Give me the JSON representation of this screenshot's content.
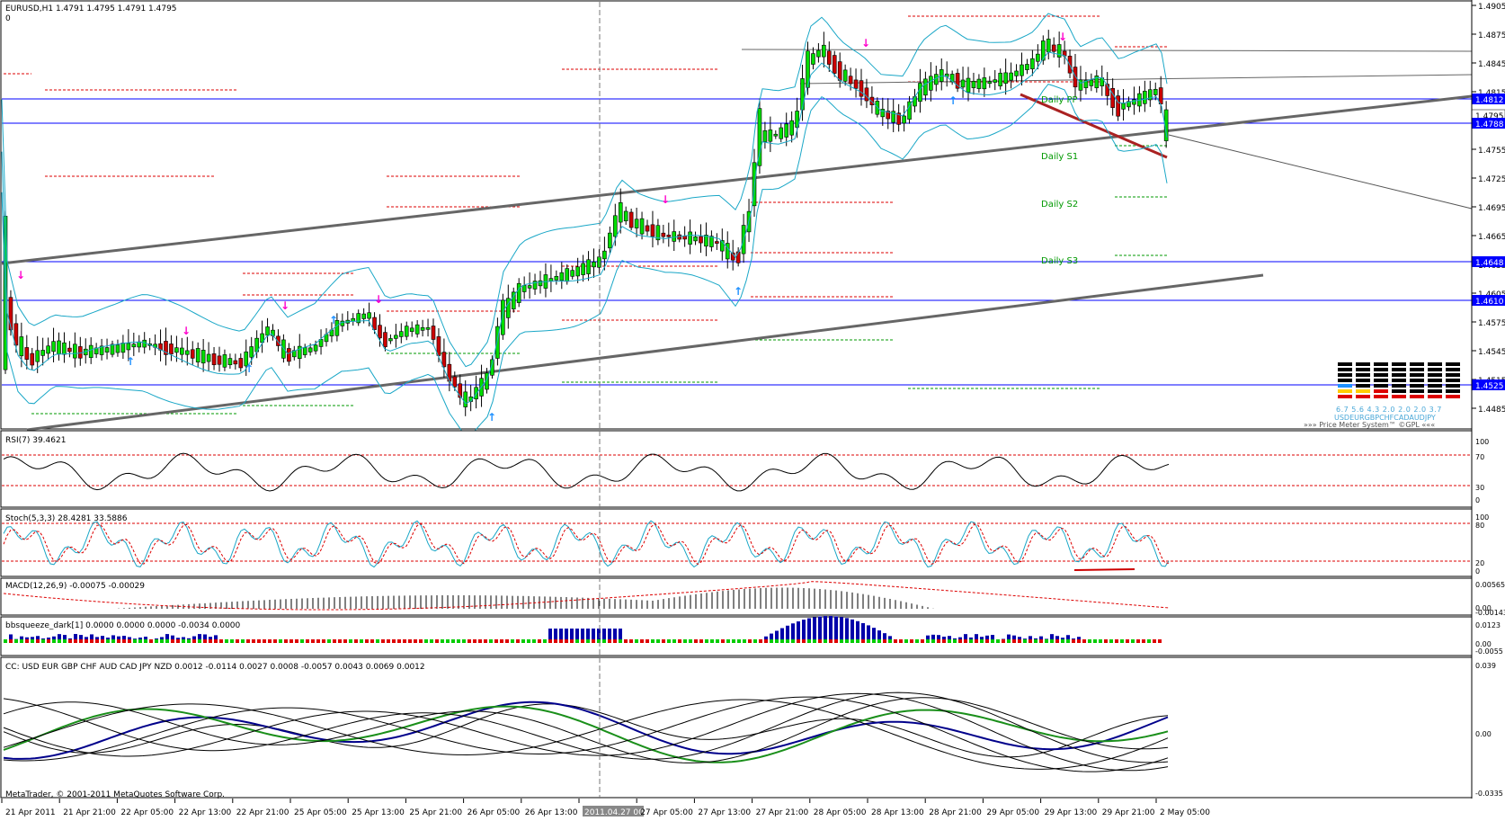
{
  "main": {
    "symbol_label": "EURUSD,H1  1.4791 1.4795 1.4791 1.4795",
    "sub_label": "0",
    "price_ticks": [
      "1.4905",
      "1.4875",
      "1.4845",
      "1.4815",
      "1.4785",
      "1.4755",
      "1.4725",
      "1.4695",
      "1.4665",
      "1.4635",
      "1.4605",
      "1.4575",
      "1.4545",
      "1.4515",
      "1.4485"
    ],
    "price_markers": [
      {
        "label": "1.4812",
        "color": "#0000ff"
      },
      {
        "label": "1.4795",
        "color": "#ffffff",
        "text_color": "#000000"
      },
      {
        "label": "1.4788",
        "color": "#0000ff"
      },
      {
        "label": "1.4648",
        "color": "#0000ff"
      },
      {
        "label": "1.4610",
        "color": "#0000ff"
      },
      {
        "label": "1.4525",
        "color": "#0000ff"
      }
    ],
    "pivot_labels": [
      "Daily PP",
      "Daily S1",
      "Daily S2",
      "Daily S3"
    ],
    "price_meter": {
      "values": "6.7 5.6 4.3 2.0 2.0 2.0 3.7",
      "currencies": "USDEURGBPCHFCADAUDJPY",
      "caption": "»»» Price Meter System™ ©GPL «««"
    }
  },
  "panels": [
    {
      "id": "rsi",
      "label": "RSI(7) 39.4621",
      "ticks": [
        "100",
        "70",
        "30",
        "0"
      ]
    },
    {
      "id": "stoch",
      "label": "Stoch(5,3,3) 28.4281 33.5886",
      "ticks": [
        "100",
        "80",
        "20",
        "0"
      ]
    },
    {
      "id": "macd",
      "label": "MACD(12,26,9) -0.00075 -0.00029",
      "ticks": [
        "0.00565",
        "0.00",
        "-0.00143"
      ]
    },
    {
      "id": "bbsq",
      "label": "bbsqueeze_dark[1] 0.0000 0.0000 0.0000 -0.0034 0.0000",
      "ticks": [
        "0.0123",
        "0.00",
        "-0.0055"
      ]
    },
    {
      "id": "cc",
      "label": "CC:  USD EUR GBP CHF AUD CAD JPY NZD 0.0012 -0.0114 0.0027 0.0008 -0.0057 0.0043 0.0069 0.0012",
      "ticks": [
        "0.039",
        "0.00",
        "-0.0335"
      ]
    }
  ],
  "copyright": "MetaTrader, © 2001-2011 MetaQuotes Software Corp.",
  "time_axis": {
    "labels": [
      "21 Apr 2011",
      "21 Apr 21:00",
      "22 Apr 05:00",
      "22 Apr 13:00",
      "22 Apr 21:00",
      "25 Apr 05:00",
      "25 Apr 13:00",
      "25 Apr 21:00",
      "26 Apr 05:00",
      "26 Apr 13:00",
      "2011.04.27 00:00",
      "27 Apr 05:00",
      "27 Apr 13:00",
      "27 Apr 21:00",
      "28 Apr 05:00",
      "28 Apr 13:00",
      "28 Apr 21:00",
      "29 Apr 05:00",
      "29 Apr 13:00",
      "29 Apr 21:00",
      "2 May 05:00"
    ],
    "highlight_index": 10
  },
  "colors": {
    "bull": "#00dd00",
    "bear": "#cc0000",
    "pivot_red": "#dd0000",
    "pivot_green": "#009900",
    "support_blue": "#0000ff",
    "bands": "#1aa7c7",
    "channel": "#666666",
    "pink_arrow": "#ff00cc",
    "blue_arrow": "#1e90ff"
  }
}
